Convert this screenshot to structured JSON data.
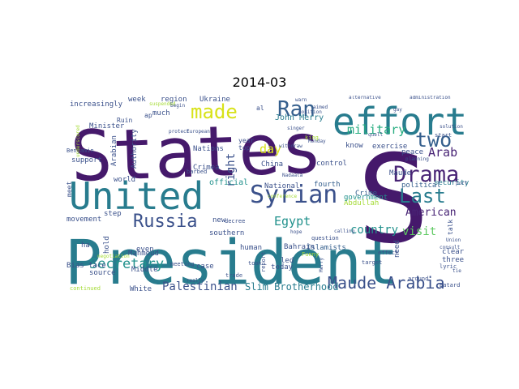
{
  "title": "2014-03",
  "palette": {
    "purple": "#45196b",
    "violet": "#482475",
    "indigo": "#3b518b",
    "blue": "#355f8d",
    "teal": "#287c8e",
    "cyan": "#21918c",
    "green": "#27ad81",
    "lime": "#5ec962",
    "yellow": "#a5db36",
    "gold": "#d8e219"
  },
  "words": {
    "states": "States",
    "president": "President",
    "s": "S",
    "united": "United",
    "effort": "effort",
    "ran": "Ran",
    "made": "made",
    "drama": "Drama",
    "syrian": "Syrian",
    "two": "two",
    "last": "Last",
    "russia": "Russia",
    "maude_arabia": "Maude Arabia",
    "secretary": "Secretary",
    "military": "military",
    "arab": "Arab",
    "egypt": "Egypt",
    "american": "American",
    "palestinian": "Palestinian",
    "slim_brotherhood": "Slim Brotherhood",
    "country": "country",
    "visit": "visit",
    "day": "day",
    "john_merry": "John Merry",
    "right": "right",
    "security": "security",
    "islamists": "Islamists",
    "abdullah": "Abdullah",
    "political": "political",
    "crime": "Crime",
    "government": "government",
    "fourth": "fourth",
    "national": "National",
    "official": "official",
    "crimea": "Crimea",
    "nations": "Nations",
    "ukraine": "Ukraine",
    "region": "region",
    "week": "week",
    "increasingly": "increasingly",
    "minister": "Minister",
    "arabian": "Arabian",
    "authority": "Authority",
    "much": "much",
    "support": "support",
    "benjamin": "Benjamin",
    "movement": "movement",
    "step": "step",
    "world": "world",
    "hold": "hold",
    "mahmoud": "Mahmoud",
    "white": "White",
    "middle": "Middle",
    "source": "source",
    "bias_face": "Bias face",
    "even": "even",
    "ha": "ha",
    "meet": "meet",
    "human": "human",
    "led": "led",
    "today": "today",
    "bahrain": "Bahrain",
    "southern": "southern",
    "case": "case",
    "new": "new",
    "decree": "decree",
    "china": "China",
    "control": "control",
    "exercise": "exercise",
    "know": "know",
    "peace": "peace",
    "maude": "Maude",
    "three": "three",
    "clear": "clear",
    "need": "need",
    "around": "around",
    "batard": "Batard",
    "lyric": "lyric",
    "talk": "talk",
    "start": "start",
    "year": "year",
    "top": "top",
    "ruin": "Ruin",
    "barbed": "barbed",
    "took": "took",
    "trade": "trade",
    "meeting": "meeting",
    "report": "report",
    "continued": "continued",
    "funny": "Funny",
    "effect": "effect",
    "target": "target",
    "question": "question",
    "king": "king",
    "suspended": "suspended",
    "begin": "begin",
    "protect": "protect",
    "european": "European",
    "really": "really",
    "conference": "conference",
    "solution": "solution",
    "administration": "administration",
    "underscored": "underscored",
    "aimed": "aimed",
    "quell": "quell",
    "gay": "gay",
    "warn": "warn",
    "calling": "calling",
    "union": "Union",
    "consult": "consult",
    "tie": "tie",
    "port": "port",
    "planning": "planning",
    "hope": "hope",
    "position": "position",
    "singer": "singer",
    "monday": "Monday",
    "withdraw": "withdraw",
    "nadaala": "Nadaala",
    "negotiation": "negotiation",
    "al": "al",
    "merry": "Merry",
    "ap": "ap",
    "alternative": "alternative"
  }
}
